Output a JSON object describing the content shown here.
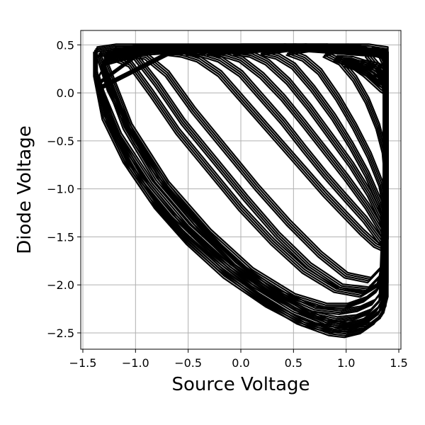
{
  "chart_data": {
    "type": "line",
    "title": "",
    "xlabel": "Source Voltage",
    "ylabel": "Diode Voltage",
    "xlim": [
      -1.52,
      1.52
    ],
    "ylim": [
      -2.67,
      0.65
    ],
    "xticks": [
      -1.5,
      -1.0,
      -0.5,
      0.0,
      0.5,
      1.0,
      1.5
    ],
    "xtick_labels": [
      "−1.5",
      "−1.0",
      "−0.5",
      "0.0",
      "0.5",
      "1.0",
      "1.5"
    ],
    "yticks": [
      0.5,
      0.0,
      -0.5,
      -1.0,
      -1.5,
      -2.0,
      -2.5
    ],
    "ytick_labels": [
      "0.5",
      "0.0",
      "−0.5",
      "−1.0",
      "−1.5",
      "−2.0",
      "−2.5"
    ],
    "grid": true,
    "line_color": "#000000",
    "series": [
      {
        "x": [
          -1.38,
          -1.3,
          -1.1,
          -0.85,
          -0.55,
          -0.2,
          0.2,
          0.55,
          0.85,
          1.0,
          1.15,
          1.28,
          1.36,
          1.38,
          1.38,
          1.38,
          1.2,
          0.9,
          0.4,
          -0.2,
          -0.8,
          -1.2,
          -1.38,
          -1.38
        ],
        "y": [
          0.2,
          -0.25,
          -0.7,
          -1.1,
          -1.48,
          -1.82,
          -2.15,
          -2.38,
          -2.5,
          -2.52,
          -2.48,
          -2.38,
          -2.25,
          -2.0,
          -1.0,
          0.45,
          0.48,
          0.48,
          0.48,
          0.48,
          0.48,
          0.48,
          0.45,
          0.2
        ]
      },
      {
        "x": [
          -1.36,
          -1.25,
          -1.05,
          -0.8,
          -0.5,
          -0.15,
          0.25,
          0.6,
          0.88,
          1.05,
          1.2,
          1.32,
          1.37,
          1.37,
          1.37,
          1.1,
          0.6,
          0.0,
          -0.7,
          -1.2,
          -1.36
        ],
        "y": [
          0.15,
          -0.3,
          -0.78,
          -1.18,
          -1.55,
          -1.9,
          -2.2,
          -2.4,
          -2.47,
          -2.45,
          -2.38,
          -2.28,
          -2.1,
          -1.0,
          0.4,
          0.46,
          0.46,
          0.46,
          0.46,
          0.46,
          0.15
        ]
      },
      {
        "x": [
          -1.35,
          -1.2,
          -0.95,
          -0.65,
          -0.3,
          0.1,
          0.5,
          0.8,
          1.0,
          1.15,
          1.3,
          1.37,
          1.37,
          1.37,
          1.0,
          0.4,
          -0.3,
          -0.9,
          -1.35
        ],
        "y": [
          0.1,
          -0.4,
          -0.88,
          -1.28,
          -1.65,
          -2.0,
          -2.27,
          -2.4,
          -2.42,
          -2.38,
          -2.25,
          -2.1,
          -1.0,
          0.4,
          0.46,
          0.46,
          0.46,
          0.46,
          0.1
        ]
      },
      {
        "x": [
          -1.34,
          -1.15,
          -0.85,
          -0.5,
          -0.1,
          0.3,
          0.65,
          0.9,
          1.08,
          1.22,
          1.33,
          1.37,
          1.37,
          0.9,
          0.2,
          -0.6,
          -1.34
        ],
        "y": [
          0.05,
          -0.45,
          -0.95,
          -1.4,
          -1.8,
          -2.1,
          -2.3,
          -2.36,
          -2.34,
          -2.28,
          -2.15,
          -1.0,
          0.4,
          0.46,
          0.46,
          0.46,
          0.05
        ]
      },
      {
        "x": [
          -1.32,
          -1.1,
          -0.8,
          -0.45,
          -0.05,
          0.35,
          0.7,
          0.95,
          1.12,
          1.26,
          1.35,
          1.37,
          1.37,
          0.8,
          0.0,
          -0.8,
          -1.32
        ],
        "y": [
          0.3,
          -0.35,
          -0.9,
          -1.35,
          -1.78,
          -2.08,
          -2.25,
          -2.28,
          -2.25,
          -2.18,
          -2.05,
          -1.0,
          0.42,
          0.46,
          0.46,
          0.46,
          0.3
        ]
      },
      {
        "x": [
          -1.3,
          -1.05,
          -0.7,
          -0.3,
          0.1,
          0.5,
          0.8,
          1.0,
          1.18,
          1.3,
          1.37,
          1.37,
          0.7,
          -0.2,
          -1.0,
          -1.3
        ],
        "y": [
          0.35,
          -0.35,
          -0.95,
          -1.45,
          -1.85,
          -2.12,
          -2.22,
          -2.22,
          -2.15,
          -2.05,
          -1.8,
          0.42,
          0.46,
          0.46,
          0.46,
          0.35
        ]
      },
      {
        "x": [
          -1.35,
          -1.25,
          -1.0,
          -0.7,
          -0.4,
          -0.05,
          0.3,
          0.6,
          0.85,
          1.05,
          1.22,
          1.34,
          1.38,
          1.38,
          1.1,
          0.5,
          -0.3,
          -1.0,
          -1.35
        ],
        "y": [
          0.4,
          0.05,
          -0.5,
          -0.98,
          -1.38,
          -1.78,
          -2.08,
          -2.28,
          -2.4,
          -2.44,
          -2.42,
          -2.32,
          -2.15,
          0.38,
          0.47,
          0.47,
          0.47,
          0.47,
          0.4
        ]
      },
      {
        "x": [
          -1.28,
          -1.05,
          -0.85,
          -0.6,
          -0.3,
          0.0,
          0.3,
          0.6,
          0.9,
          1.15,
          1.3,
          1.37,
          1.37,
          0.8,
          0.0,
          -0.8,
          -1.28
        ],
        "y": [
          0.4,
          0.3,
          0.0,
          -0.4,
          -0.8,
          -1.2,
          -1.55,
          -1.85,
          -2.05,
          -2.1,
          -2.0,
          -1.75,
          0.4,
          0.47,
          0.47,
          0.47,
          0.4
        ]
      },
      {
        "x": [
          -1.2,
          -1.0,
          -0.8,
          -0.55,
          -0.25,
          0.05,
          0.35,
          0.65,
          0.95,
          1.2,
          1.33,
          1.37,
          1.37,
          0.6,
          -0.2,
          -1.2
        ],
        "y": [
          0.4,
          0.38,
          0.1,
          -0.3,
          -0.7,
          -1.1,
          -1.48,
          -1.8,
          -2.02,
          -2.05,
          -1.9,
          -1.6,
          0.4,
          0.47,
          0.47,
          0.4
        ]
      },
      {
        "x": [
          -1.1,
          -0.9,
          -0.7,
          -0.45,
          -0.15,
          0.15,
          0.45,
          0.75,
          1.0,
          1.22,
          1.35,
          1.37,
          1.37,
          0.5,
          -0.4,
          -1.1
        ],
        "y": [
          0.4,
          0.38,
          0.2,
          -0.18,
          -0.58,
          -0.98,
          -1.35,
          -1.68,
          -1.9,
          -1.95,
          -1.8,
          -1.55,
          0.4,
          0.47,
          0.47,
          0.4
        ]
      },
      {
        "x": [
          -0.7,
          -0.55,
          -0.4,
          -0.2,
          0.0,
          0.2,
          0.4,
          0.6,
          0.8,
          1.0,
          1.15,
          1.28,
          1.36,
          1.38,
          1.38,
          0.8,
          0.0,
          -0.7
        ],
        "y": [
          0.42,
          0.4,
          0.35,
          0.2,
          -0.05,
          -0.3,
          -0.55,
          -0.8,
          -1.05,
          -1.28,
          -1.45,
          -1.58,
          -1.62,
          -1.55,
          0.4,
          0.48,
          0.48,
          0.42
        ]
      },
      {
        "x": [
          -0.5,
          -0.35,
          -0.2,
          0.0,
          0.2,
          0.4,
          0.6,
          0.8,
          1.0,
          1.18,
          1.3,
          1.37,
          1.38,
          1.38,
          0.6,
          -0.5
        ],
        "y": [
          0.42,
          0.4,
          0.35,
          0.2,
          -0.05,
          -0.3,
          -0.58,
          -0.85,
          -1.1,
          -1.32,
          -1.5,
          -1.6,
          -1.55,
          0.4,
          0.48,
          0.42
        ]
      },
      {
        "x": [
          -0.3,
          -0.15,
          0.0,
          0.2,
          0.4,
          0.6,
          0.8,
          1.0,
          1.2,
          1.33,
          1.38,
          1.38,
          0.5,
          -0.3
        ],
        "y": [
          0.42,
          0.4,
          0.35,
          0.18,
          -0.05,
          -0.32,
          -0.6,
          -0.88,
          -1.18,
          -1.42,
          -1.55,
          0.4,
          0.48,
          0.42
        ]
      },
      {
        "x": [
          -0.05,
          0.1,
          0.25,
          0.45,
          0.65,
          0.85,
          1.05,
          1.22,
          1.33,
          1.38,
          1.38,
          0.4,
          -0.05
        ],
        "y": [
          0.42,
          0.4,
          0.32,
          0.12,
          -0.15,
          -0.45,
          -0.75,
          -1.05,
          -1.3,
          -1.5,
          0.4,
          0.48,
          0.42
        ]
      },
      {
        "x": [
          0.2,
          0.35,
          0.5,
          0.68,
          0.88,
          1.05,
          1.2,
          1.32,
          1.38,
          1.38,
          0.6,
          0.2
        ],
        "y": [
          0.42,
          0.38,
          0.28,
          0.05,
          -0.25,
          -0.55,
          -0.85,
          -1.15,
          -1.4,
          0.4,
          0.48,
          0.42
        ]
      },
      {
        "x": [
          0.45,
          0.6,
          0.75,
          0.92,
          1.08,
          1.22,
          1.33,
          1.38,
          1.38,
          0.8,
          0.45
        ],
        "y": [
          0.42,
          0.36,
          0.22,
          -0.05,
          -0.35,
          -0.65,
          -0.95,
          -1.25,
          0.4,
          0.48,
          0.42
        ]
      },
      {
        "x": [
          0.8,
          0.95,
          1.08,
          1.2,
          1.3,
          1.36,
          1.38,
          1.38,
          1.0,
          0.8
        ],
        "y": [
          0.4,
          0.32,
          0.15,
          -0.08,
          -0.35,
          -0.6,
          -0.85,
          0.4,
          0.48,
          0.4
        ]
      },
      {
        "x": [
          0.9,
          1.05,
          1.18,
          1.28,
          1.34,
          1.37,
          1.37,
          1.3,
          1.2,
          1.05,
          0.9
        ],
        "y": [
          0.36,
          0.3,
          0.2,
          0.1,
          0.04,
          0.02,
          0.1,
          0.22,
          0.3,
          0.35,
          0.36
        ]
      },
      {
        "x": [
          0.95,
          1.1,
          1.22,
          1.3,
          1.36,
          1.37,
          1.37,
          1.28,
          1.15,
          0.95
        ],
        "y": [
          0.34,
          0.28,
          0.2,
          0.12,
          0.08,
          0.06,
          0.14,
          0.24,
          0.3,
          0.34
        ]
      },
      {
        "x": [
          1.0,
          1.12,
          1.24,
          1.32,
          1.37,
          1.37,
          1.3,
          1.18,
          1.0
        ],
        "y": [
          0.3,
          0.26,
          0.18,
          0.14,
          0.12,
          0.22,
          0.28,
          0.31,
          0.3
        ]
      },
      {
        "x": [
          1.2,
          1.28,
          1.35,
          1.37,
          1.37,
          1.32,
          1.24,
          1.2
        ],
        "y": [
          0.4,
          0.3,
          0.2,
          0.0,
          0.3,
          0.42,
          0.45,
          0.4
        ]
      }
    ]
  }
}
